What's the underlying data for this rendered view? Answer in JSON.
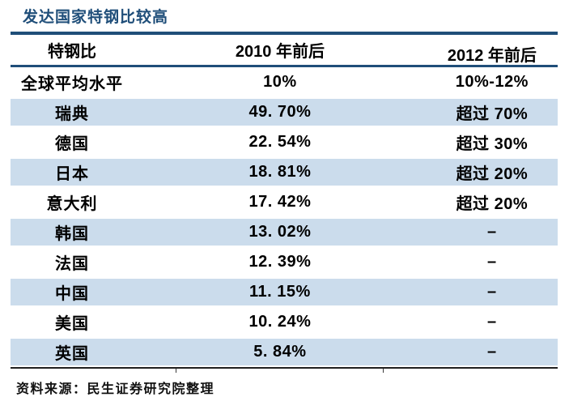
{
  "title": {
    "text": "发达国家特钢比较高"
  },
  "colors": {
    "title_blue": "#1F4E79",
    "border_blue": "#1F4E79",
    "stripe_blue": "#CBDCEC",
    "bottom_rule_black": "#1f1f1f"
  },
  "table": {
    "headers": [
      "特钢比",
      "2010 年前后",
      "2012 年前后"
    ],
    "rows": [
      {
        "name": "全球平均水平",
        "y2010": "10%",
        "y2012": "10%-12%"
      },
      {
        "name": "瑞典",
        "y2010": "49. 70%",
        "y2012": "超过 70%"
      },
      {
        "name": "德国",
        "y2010": "22. 54%",
        "y2012": "超过 30%"
      },
      {
        "name": "日本",
        "y2010": "18. 81%",
        "y2012": "超过 20%"
      },
      {
        "name": "意大利",
        "y2010": "17. 42%",
        "y2012": "超过 20%"
      },
      {
        "name": "韩国",
        "y2010": "13. 02%",
        "y2012": "–"
      },
      {
        "name": "法国",
        "y2010": "12. 39%",
        "y2012": "–"
      },
      {
        "name": "中国",
        "y2010": "11. 15%",
        "y2012": "–"
      },
      {
        "name": "美国",
        "y2010": "10. 24%",
        "y2012": "–"
      },
      {
        "name": "英国",
        "y2010": "5. 84%",
        "y2012": "–"
      }
    ]
  },
  "footer": {
    "text": "资料来源：民生证券研究院整理"
  }
}
